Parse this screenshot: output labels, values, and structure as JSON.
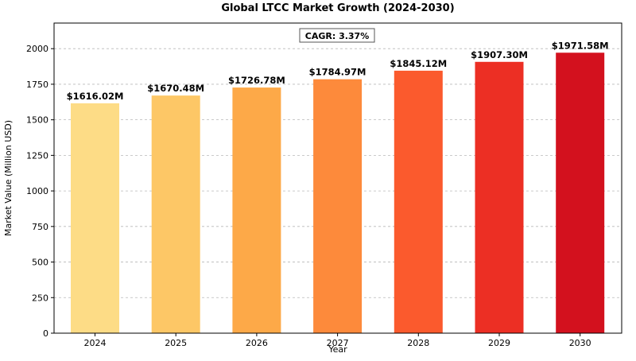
{
  "chart_data": {
    "type": "bar",
    "title": "Global LTCC Market Growth (2024-2030)",
    "xlabel": "Year",
    "ylabel": "Market Value (Million USD)",
    "categories": [
      "2024",
      "2025",
      "2026",
      "2027",
      "2028",
      "2029",
      "2030"
    ],
    "values": [
      1616.02,
      1670.48,
      1726.78,
      1784.97,
      1845.12,
      1907.3,
      1971.58
    ],
    "data_labels": [
      "$1616.02M",
      "$1670.48M",
      "$1726.78M",
      "$1784.97M",
      "$1845.12M",
      "$1907.30M",
      "$1971.58M"
    ],
    "ylim": [
      0,
      2180
    ],
    "yticks": [
      0,
      250,
      500,
      750,
      1000,
      1250,
      1500,
      1750,
      2000
    ],
    "grid": true,
    "bar_colors": [
      "#fddc86",
      "#fdc766",
      "#fda948",
      "#fd8a3b",
      "#fb5a2d",
      "#ec2f24",
      "#d3111e"
    ],
    "annotation": "CAGR: 3.37%"
  }
}
